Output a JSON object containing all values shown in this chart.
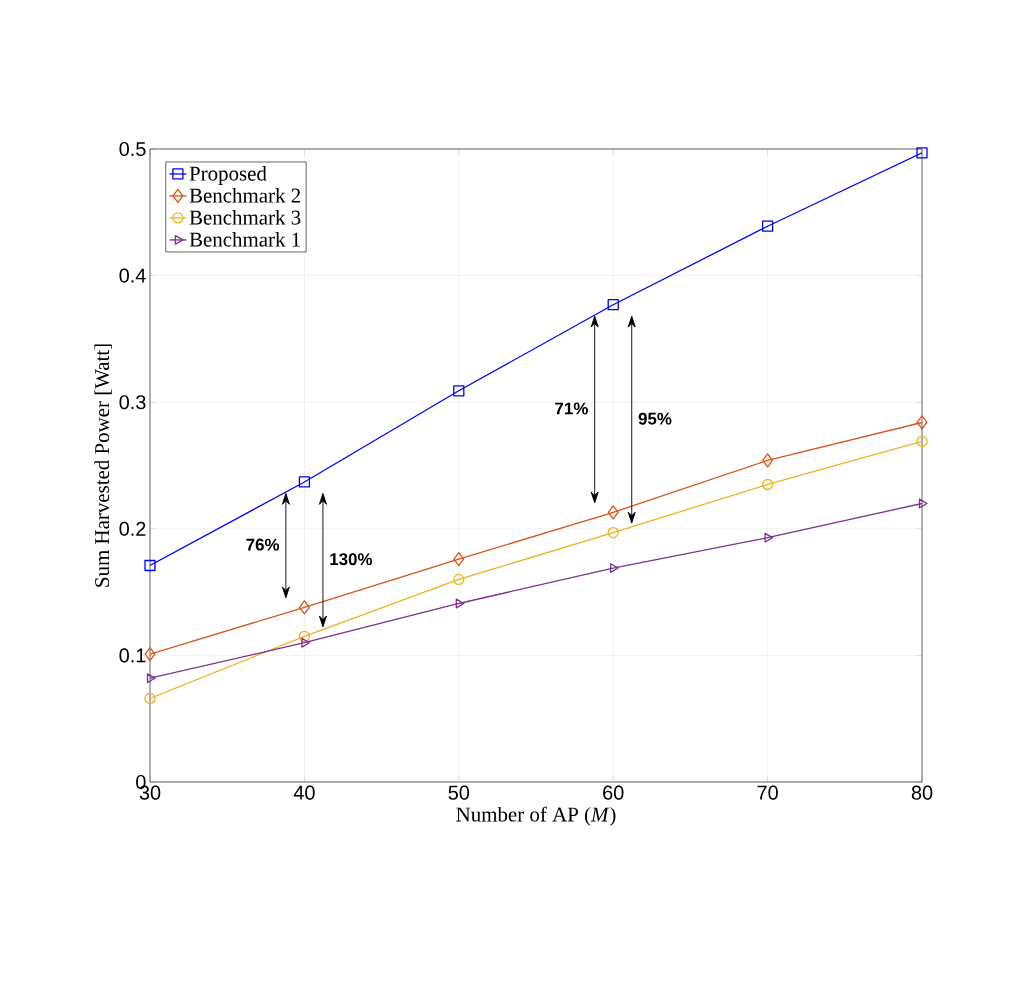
{
  "chart_data": {
    "type": "line",
    "xlabel": "Number of AP (*M*)",
    "ylabel": "Sum Harvested Power [Watt]",
    "x": [
      30,
      40,
      50,
      60,
      70,
      80
    ],
    "series": [
      {
        "name": "Proposed",
        "color": "#0000ff",
        "marker": "square",
        "values": [
          0.171,
          0.237,
          0.309,
          0.377,
          0.439,
          0.497
        ]
      },
      {
        "name": "Benchmark 2",
        "color": "#d95319",
        "marker": "diamond",
        "values": [
          0.101,
          0.138,
          0.176,
          0.213,
          0.254,
          0.284
        ]
      },
      {
        "name": "Benchmark 3",
        "color": "#edb120",
        "marker": "circle",
        "values": [
          0.066,
          0.115,
          0.16,
          0.197,
          0.235,
          0.269
        ]
      },
      {
        "name": "Benchmark 1",
        "color": "#7e2f8e",
        "marker": "triangle",
        "values": [
          0.082,
          0.11,
          0.141,
          0.169,
          0.193,
          0.22
        ]
      }
    ],
    "annotations": [
      "76%",
      "130%",
      "71%",
      "95%"
    ],
    "xlim": [
      30,
      80
    ],
    "ylim": [
      0,
      0.5
    ],
    "xticks": [
      30,
      40,
      50,
      60,
      70,
      80
    ],
    "yticks": [
      0,
      0.1,
      0.2,
      0.3,
      0.4,
      0.5
    ],
    "grid": true,
    "legend": "top left",
    "line_style": "solid"
  }
}
